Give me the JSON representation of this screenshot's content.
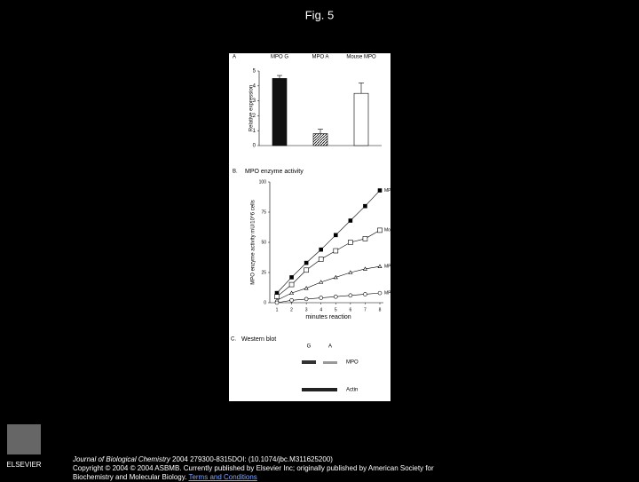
{
  "header": {
    "title": "Fig. 5"
  },
  "chart_data": [
    {
      "type": "bar",
      "panel": "A",
      "categories": [
        "MPO G",
        "MPO A",
        "Mouse MPO"
      ],
      "values": [
        4.5,
        0.8,
        3.5
      ],
      "errors": [
        0.2,
        0.3,
        0.7
      ],
      "colors": [
        "#111111",
        "#9a9a9a",
        "#ffffff"
      ],
      "ylabel": "Relative expression",
      "ylim": [
        0,
        5
      ],
      "yticks": [
        0,
        1,
        2,
        3,
        4,
        5
      ]
    },
    {
      "type": "line",
      "panel": "B.",
      "title": "MPO enzyme activity",
      "xlabel": "minutes reaction",
      "ylabel": "MPO enzyme activity mU/10^6 cells",
      "x": [
        1,
        2,
        3,
        4,
        5,
        6,
        7,
        8
      ],
      "xlim": [
        1,
        8
      ],
      "xticks": [
        1,
        2,
        3,
        4,
        5,
        6,
        7,
        8
      ],
      "ylim": [
        0,
        100
      ],
      "yticks": [
        0,
        25,
        50,
        75,
        100
      ],
      "series": [
        {
          "name": "MPO G",
          "color": "#000000",
          "marker": "filled-square",
          "values": [
            8,
            21,
            33,
            44,
            56,
            68,
            80,
            93
          ]
        },
        {
          "name": "MoMPO",
          "color": "#000000",
          "marker": "open-square",
          "values": [
            5,
            15,
            27,
            36,
            43,
            50,
            53,
            60
          ]
        },
        {
          "name": "MPO A",
          "color": "#000000",
          "marker": "triangle",
          "values": [
            2,
            8,
            12,
            17,
            21,
            25,
            28,
            30
          ]
        },
        {
          "name": "MPO KO",
          "color": "#000000",
          "marker": "open-circle",
          "values": [
            0,
            2,
            3,
            4,
            5,
            6,
            7,
            8
          ]
        }
      ]
    }
  ],
  "western_blot": {
    "panel": "C.",
    "title": "Western blot",
    "lanes": [
      "G",
      "A"
    ],
    "bands": [
      "MPO",
      "Actin"
    ]
  },
  "footer": {
    "logo": "ELSEVIER",
    "journal": "Journal of Biological Chemistry",
    "citation": " 2004 279300-8315DOI: (10.1074/jbc.M311625200)",
    "copyright": "Copyright © 2004 © 2004 ASBMB. Currently published by Elsevier Inc; originally published by American Society for Biochemistry and Molecular Biology.",
    "link": "Terms and Conditions"
  }
}
